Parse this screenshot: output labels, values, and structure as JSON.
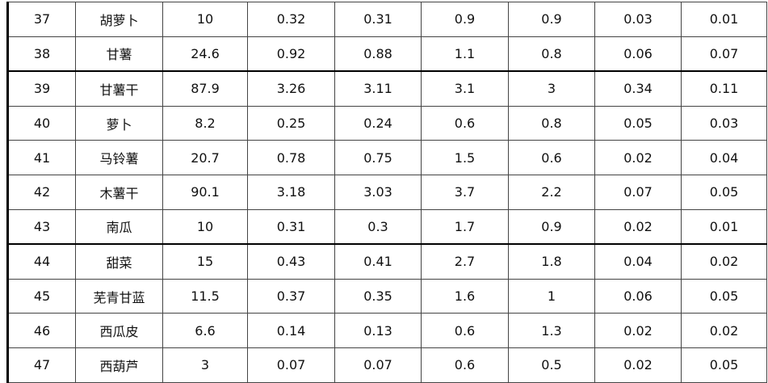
{
  "table": {
    "rows": [
      [
        "37",
        "胡萝卜",
        "10",
        "0.32",
        "0.31",
        "0.9",
        "0.9",
        "0.03",
        "0.01"
      ],
      [
        "38",
        "甘薯",
        "24.6",
        "0.92",
        "0.88",
        "1.1",
        "0.8",
        "0.06",
        "0.07"
      ],
      [
        "39",
        "甘薯干",
        "87.9",
        "3.26",
        "3.11",
        "3.1",
        "3",
        "0.34",
        "0.11"
      ],
      [
        "40",
        "萝卜",
        "8.2",
        "0.25",
        "0.24",
        "0.6",
        "0.8",
        "0.05",
        "0.03"
      ],
      [
        "41",
        "马铃薯",
        "20.7",
        "0.78",
        "0.75",
        "1.5",
        "0.6",
        "0.02",
        "0.04"
      ],
      [
        "42",
        "木薯干",
        "90.1",
        "3.18",
        "3.03",
        "3.7",
        "2.2",
        "0.07",
        "0.05"
      ],
      [
        "43",
        "南瓜",
        "10",
        "0.31",
        "0.3",
        "1.7",
        "0.9",
        "0.02",
        "0.01"
      ],
      [
        "44",
        "甜菜",
        "15",
        "0.43",
        "0.41",
        "2.7",
        "1.8",
        "0.04",
        "0.02"
      ],
      [
        "45",
        "芜青甘蓝",
        "11.5",
        "0.37",
        "0.35",
        "1.6",
        "1",
        "0.06",
        "0.05"
      ],
      [
        "46",
        "西瓜皮",
        "6.6",
        "0.14",
        "0.13",
        "0.6",
        "1.3",
        "0.02",
        "0.02"
      ],
      [
        "47",
        "西葫芦",
        "3",
        "0.07",
        "0.07",
        "0.6",
        "0.5",
        "0.02",
        "0.05"
      ]
    ]
  }
}
